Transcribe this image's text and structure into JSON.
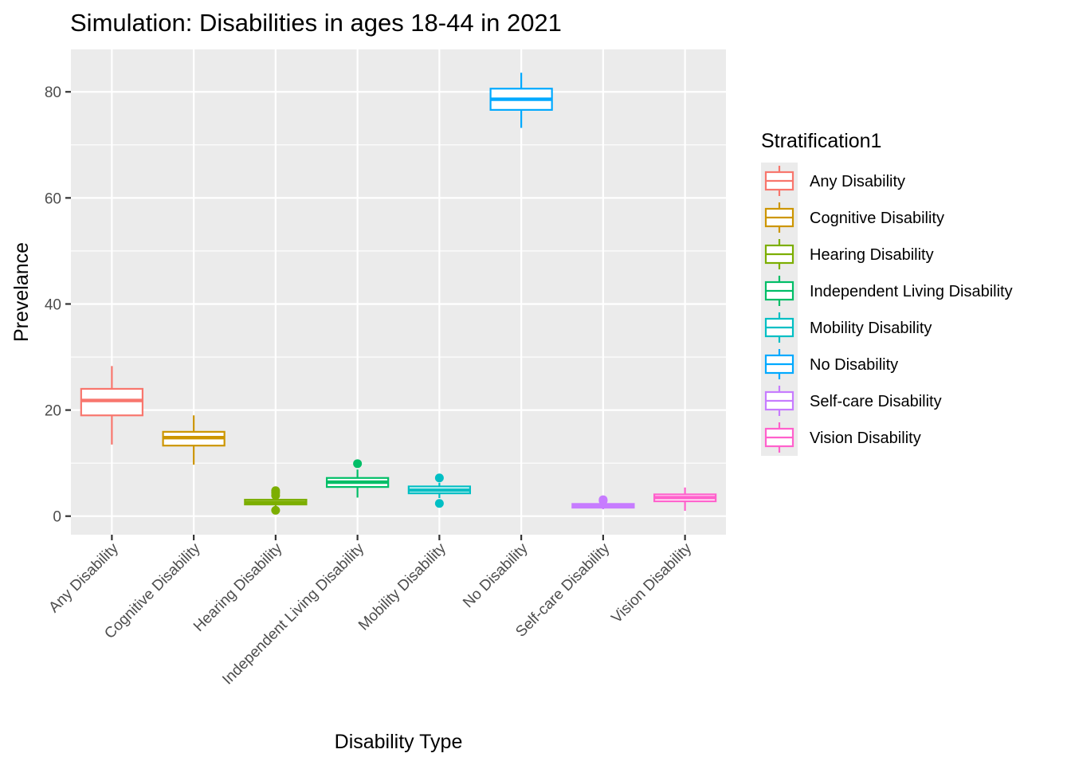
{
  "chart_data": {
    "type": "boxplot",
    "title": "Simulation: Disabilities in ages 18-44 in 2021",
    "xlabel": "Disability Type",
    "ylabel": "Prevelance",
    "ylim": [
      -3.5,
      88
    ],
    "yticks": [
      0,
      20,
      40,
      60,
      80
    ],
    "grid": true,
    "legend": {
      "title": "Stratification1",
      "placement": "right"
    },
    "categories": [
      "Any Disability",
      "Cognitive Disability",
      "Hearing Disability",
      "Independent Living Disability",
      "Mobility Disability",
      "No Disability",
      "Self-care Disability",
      "Vision Disability"
    ],
    "colors": [
      "#F8766D",
      "#CD9600",
      "#7CAE00",
      "#00BE67",
      "#00BFC4",
      "#00A9FF",
      "#C77CFF",
      "#FF61CC"
    ],
    "boxes": [
      {
        "whisker_low": 13.5,
        "q1": 19.0,
        "median": 21.8,
        "q3": 24.0,
        "whisker_high": 28.3,
        "outliers": []
      },
      {
        "whisker_low": 9.7,
        "q1": 13.3,
        "median": 14.8,
        "q3": 15.9,
        "whisker_high": 19.0,
        "outliers": []
      },
      {
        "whisker_low": 1.8,
        "q1": 2.2,
        "median": 2.6,
        "q3": 3.1,
        "whisker_high": 3.5,
        "outliers": [
          1.1,
          3.9,
          4.4,
          4.8
        ]
      },
      {
        "whisker_low": 3.5,
        "q1": 5.5,
        "median": 6.4,
        "q3": 7.2,
        "whisker_high": 8.8,
        "outliers": [
          9.9
        ]
      },
      {
        "whisker_low": 3.4,
        "q1": 4.3,
        "median": 4.9,
        "q3": 5.6,
        "whisker_high": 6.3,
        "outliers": [
          2.4,
          7.2
        ]
      },
      {
        "whisker_low": 73.2,
        "q1": 76.6,
        "median": 78.6,
        "q3": 80.6,
        "whisker_high": 83.6,
        "outliers": []
      },
      {
        "whisker_low": 1.3,
        "q1": 1.6,
        "median": 1.9,
        "q3": 2.3,
        "whisker_high": 2.6,
        "outliers": [
          2.9,
          3.1
        ]
      },
      {
        "whisker_low": 1.0,
        "q1": 2.8,
        "median": 3.5,
        "q3": 4.1,
        "whisker_high": 5.4,
        "outliers": []
      }
    ]
  }
}
